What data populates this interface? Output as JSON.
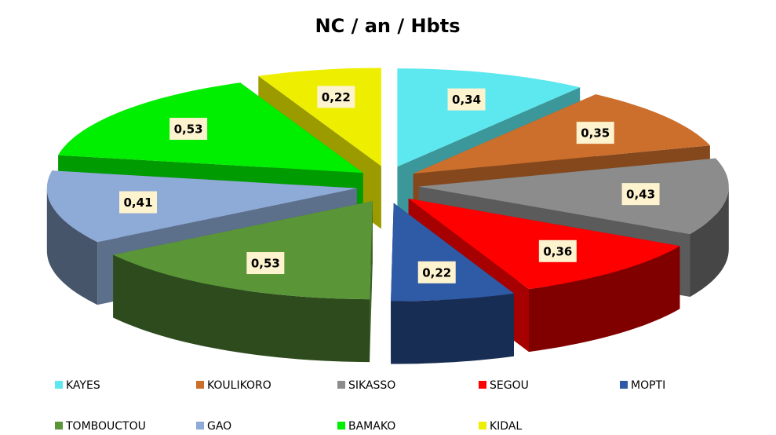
{
  "chart_data": {
    "type": "pie3d",
    "title": "NC / an / Hbts",
    "categories": [
      "KAYES",
      "KOULIKORO",
      "SIKASSO",
      "SEGOU",
      "MOPTI",
      "TOMBOUCTOU",
      "GAO",
      "BAMAKO",
      "KIDAL"
    ],
    "values": [
      0.34,
      0.35,
      0.43,
      0.36,
      0.22,
      0.53,
      0.41,
      0.53,
      0.22
    ],
    "value_labels": [
      "0,34",
      "0,35",
      "0,43",
      "0,36",
      "0,22",
      "0,53",
      "0,41",
      "0,53",
      "0,22"
    ],
    "colors": [
      "#5ce8ee",
      "#cc6f2c",
      "#8c8c8c",
      "#ff0000",
      "#2f5aa6",
      "#5a9638",
      "#8eaad6",
      "#00ee00",
      "#eeee00"
    ]
  }
}
